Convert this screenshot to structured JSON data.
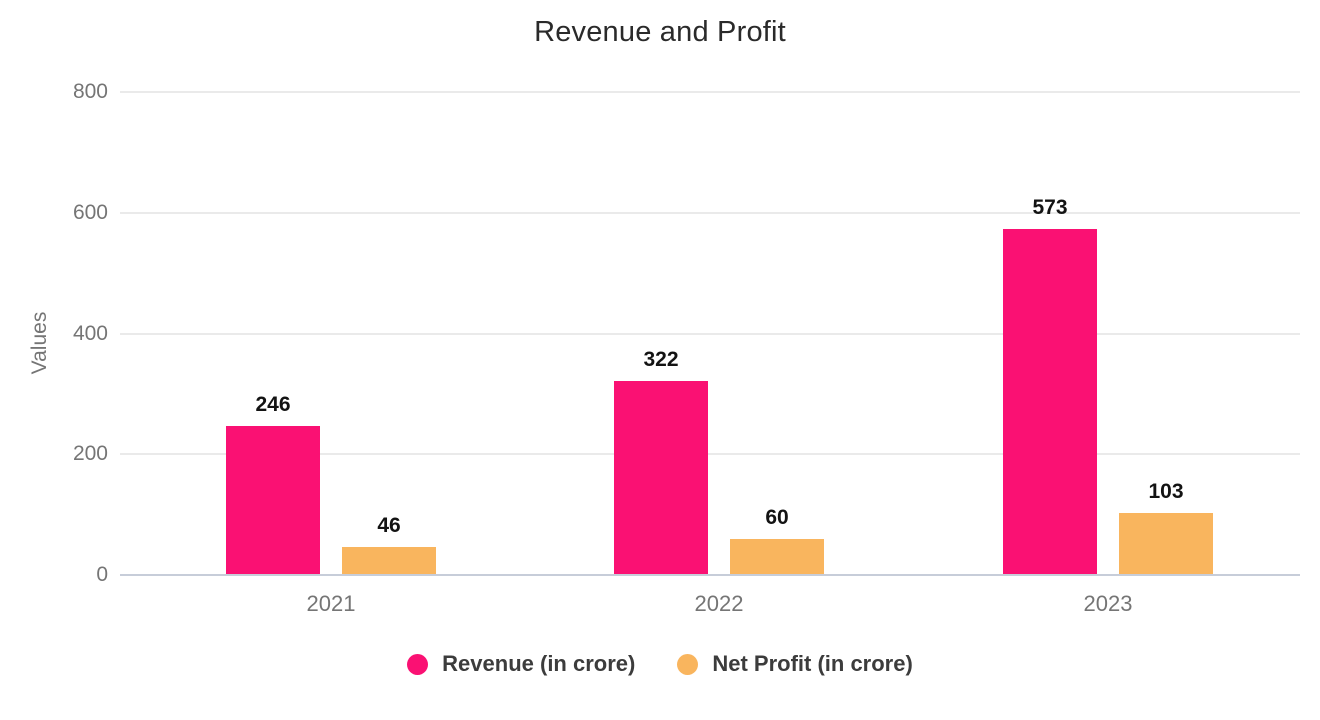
{
  "chart_data": {
    "type": "bar",
    "title": "Revenue and Profit",
    "ylabel": "Values",
    "xlabel": "",
    "categories": [
      "2021",
      "2022",
      "2023"
    ],
    "series": [
      {
        "name": "Revenue (in crore)",
        "color": "#fa1173",
        "values": [
          246,
          322,
          573
        ]
      },
      {
        "name": "Net Profit (in crore)",
        "color": "#f9b55e",
        "values": [
          46,
          60,
          103
        ]
      }
    ],
    "ylim": [
      0,
      800
    ],
    "yticks": [
      0,
      200,
      400,
      600,
      800
    ],
    "grid": true,
    "legend_position": "bottom",
    "colors": {
      "background": "#ffffff",
      "title_text": "#2a2a2a",
      "axis_text": "#757575",
      "value_label_text": "#131313",
      "legend_text": "#3c3c3c",
      "gridline": "#eaeaea",
      "axis_line": "#c7cdd9"
    }
  }
}
